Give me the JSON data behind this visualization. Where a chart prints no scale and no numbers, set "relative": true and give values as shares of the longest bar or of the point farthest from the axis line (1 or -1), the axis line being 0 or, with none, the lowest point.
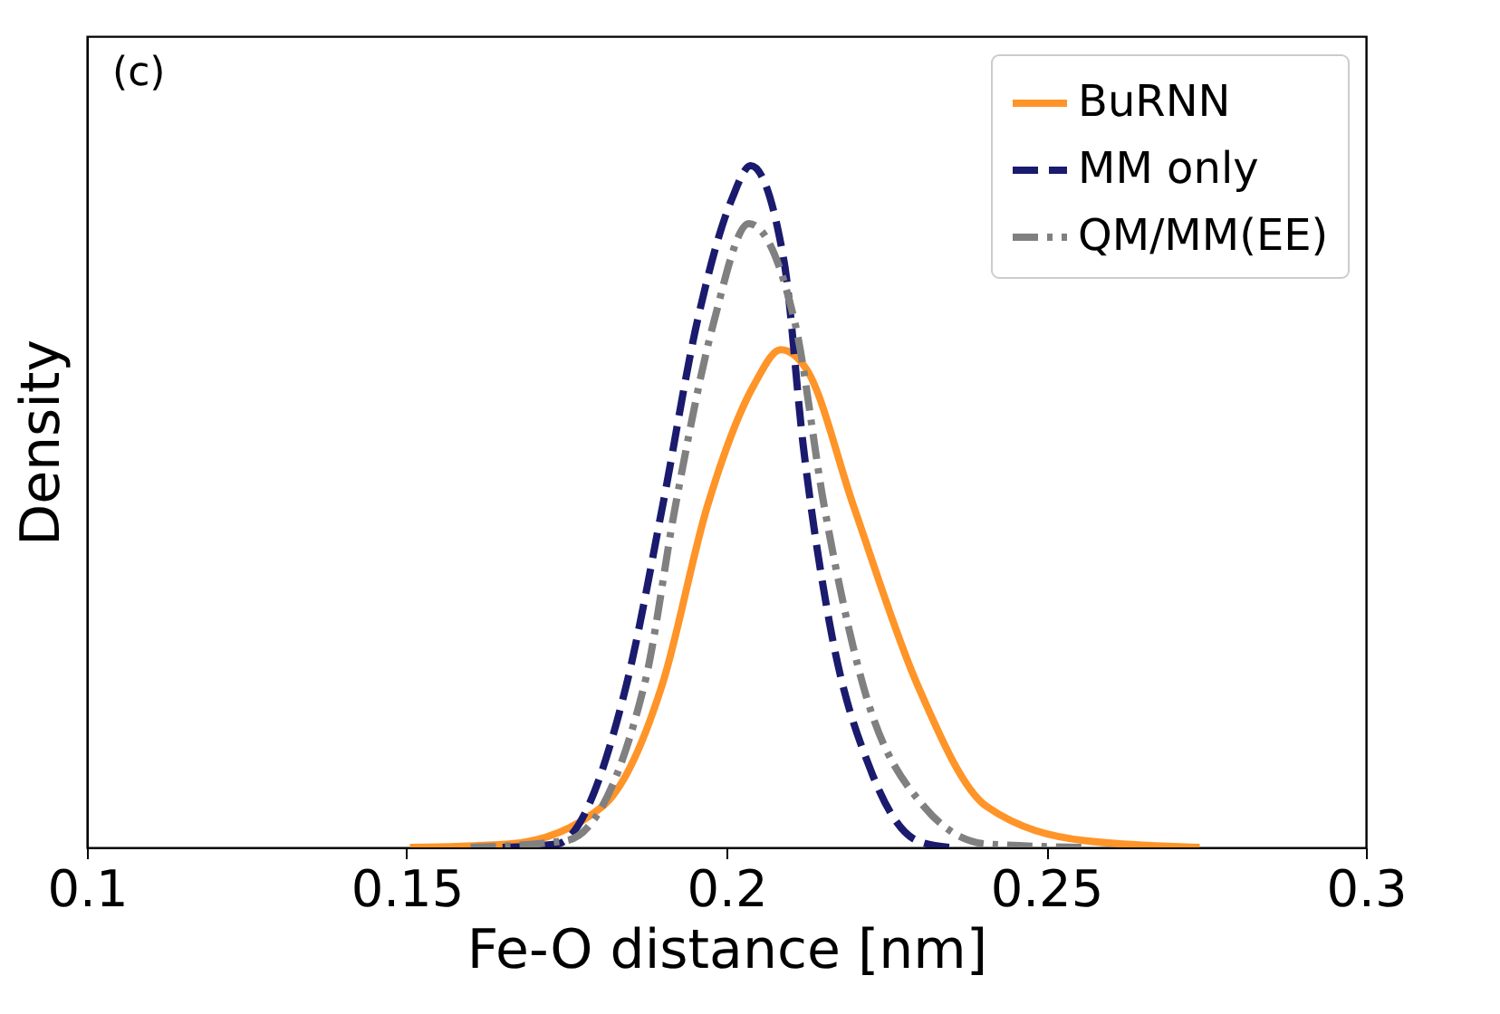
{
  "chart_data": {
    "type": "line",
    "xlabel": "Fe-O distance [nm]",
    "ylabel": "Density",
    "relative": true,
    "xlim": [
      0.1,
      0.3
    ],
    "xticks": [
      0.1,
      0.15,
      0.2,
      0.25,
      0.3
    ],
    "tick_labels": "x",
    "legend": "top right",
    "grid": false,
    "annotations": [
      "(c)"
    ],
    "series": [
      {
        "name": "BuRNN",
        "color": "#ff9428",
        "line_style": "solid",
        "x": [
          0.1505,
          0.166,
          0.1806,
          0.19,
          0.197,
          0.2044,
          0.2085,
          0.2126,
          0.2199,
          0.2298,
          0.2407,
          0.256,
          0.274
        ],
        "values": [
          0,
          0.005,
          0.06,
          0.24,
          0.5,
          0.68,
          0.73,
          0.7,
          0.5,
          0.24,
          0.06,
          0.01,
          0
        ]
      },
      {
        "name": "MM only",
        "color": "#1a1a6e",
        "line_style": "dashed",
        "x": [
          0.165,
          0.1735,
          0.1844,
          0.19,
          0.1954,
          0.2008,
          0.2038,
          0.209,
          0.212,
          0.2161,
          0.2227,
          0.2298,
          0.235
        ],
        "values": [
          0,
          0.005,
          0.24,
          0.5,
          0.77,
          0.95,
          1,
          0.86,
          0.59,
          0.33,
          0.11,
          0.01,
          0
        ]
      },
      {
        "name": "QM/MM(EE)",
        "color": "#808080",
        "line_style": "dashdot",
        "x": [
          0.16,
          0.175,
          0.1872,
          0.192,
          0.198,
          0.2035,
          0.2107,
          0.2153,
          0.2213,
          0.2309,
          0.2407,
          0.256
        ],
        "values": [
          0,
          0.01,
          0.24,
          0.5,
          0.77,
          0.915,
          0.77,
          0.5,
          0.24,
          0.06,
          0.005,
          0
        ]
      }
    ]
  }
}
